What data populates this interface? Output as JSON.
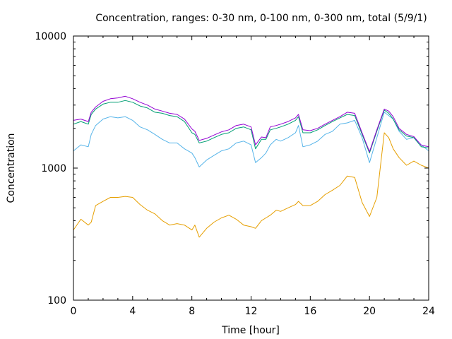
{
  "chart_data": {
    "type": "line",
    "title": "Concentration, ranges: 0-30 nm, 0-100 nm, 0-300 nm, total (5/9/1)",
    "xlabel": "Time [hour]",
    "ylabel": "Concentration",
    "xlim": [
      0,
      24
    ],
    "ylim": [
      100,
      10000
    ],
    "yscale": "log",
    "grid": false,
    "x_ticks": [
      0,
      4,
      8,
      12,
      16,
      20,
      24
    ],
    "x_tick_labels": [
      "0",
      "4",
      "8",
      "12",
      "16",
      "20",
      "24"
    ],
    "y_ticks": [
      100,
      1000,
      10000
    ],
    "y_tick_labels": [
      "100",
      "1000",
      "10000"
    ],
    "x": [
      0,
      0.5,
      1,
      1.2,
      1.5,
      2,
      2.5,
      3,
      3.5,
      4,
      4.5,
      5,
      5.5,
      6,
      6.5,
      7,
      7.5,
      8,
      8.2,
      8.5,
      9,
      9.5,
      10,
      10.5,
      11,
      11.5,
      12,
      12.3,
      12.7,
      13,
      13.3,
      13.7,
      14,
      14.5,
      15,
      15.2,
      15.5,
      16,
      16.5,
      17,
      17.5,
      18,
      18.5,
      19,
      19.5,
      20,
      20.5,
      21,
      21.3,
      21.6,
      22,
      22.5,
      23,
      23.5,
      24
    ],
    "series": [
      {
        "name": "0-30 nm",
        "color": "#e69f00",
        "values": [
          340,
          410,
          370,
          390,
          520,
          560,
          600,
          600,
          610,
          600,
          530,
          480,
          450,
          400,
          370,
          380,
          370,
          340,
          370,
          300,
          350,
          390,
          420,
          440,
          410,
          370,
          360,
          350,
          400,
          420,
          440,
          480,
          470,
          500,
          530,
          560,
          520,
          520,
          560,
          630,
          680,
          740,
          870,
          850,
          550,
          430,
          600,
          1850,
          1700,
          1400,
          1200,
          1050,
          1130,
          1050,
          1000
        ]
      },
      {
        "name": "0-100 nm",
        "color": "#56b4e9",
        "values": [
          1350,
          1500,
          1450,
          1800,
          2100,
          2350,
          2450,
          2400,
          2450,
          2300,
          2050,
          1950,
          1800,
          1650,
          1550,
          1550,
          1400,
          1300,
          1200,
          1020,
          1150,
          1250,
          1350,
          1400,
          1550,
          1600,
          1500,
          1100,
          1200,
          1300,
          1500,
          1650,
          1600,
          1700,
          1850,
          2100,
          1450,
          1500,
          1600,
          1800,
          1900,
          2150,
          2200,
          2300,
          1700,
          1100,
          1700,
          2650,
          2500,
          2350,
          1900,
          1650,
          1700,
          1500,
          1350
        ]
      },
      {
        "name": "0-300 nm",
        "color": "#009e73",
        "values": [
          2150,
          2250,
          2150,
          2550,
          2800,
          3050,
          3150,
          3150,
          3250,
          3150,
          2950,
          2850,
          2650,
          2600,
          2500,
          2450,
          2250,
          1850,
          1800,
          1550,
          1600,
          1700,
          1800,
          1850,
          2000,
          2050,
          1950,
          1400,
          1650,
          1650,
          1950,
          2000,
          2050,
          2150,
          2300,
          2450,
          1850,
          1850,
          1950,
          2100,
          2250,
          2400,
          2550,
          2500,
          1800,
          1300,
          1900,
          2750,
          2600,
          2350,
          1950,
          1750,
          1700,
          1450,
          1420
        ]
      },
      {
        "name": "total",
        "color": "#9400d3",
        "values": [
          2300,
          2350,
          2250,
          2650,
          2900,
          3200,
          3350,
          3400,
          3500,
          3350,
          3150,
          3000,
          2800,
          2700,
          2600,
          2550,
          2350,
          1980,
          1900,
          1620,
          1680,
          1780,
          1880,
          1950,
          2100,
          2150,
          2050,
          1500,
          1720,
          1700,
          2050,
          2100,
          2150,
          2250,
          2400,
          2550,
          1950,
          1920,
          2000,
          2150,
          2300,
          2450,
          2650,
          2600,
          1850,
          1330,
          1950,
          2800,
          2700,
          2450,
          2000,
          1800,
          1730,
          1490,
          1450
        ]
      }
    ]
  }
}
